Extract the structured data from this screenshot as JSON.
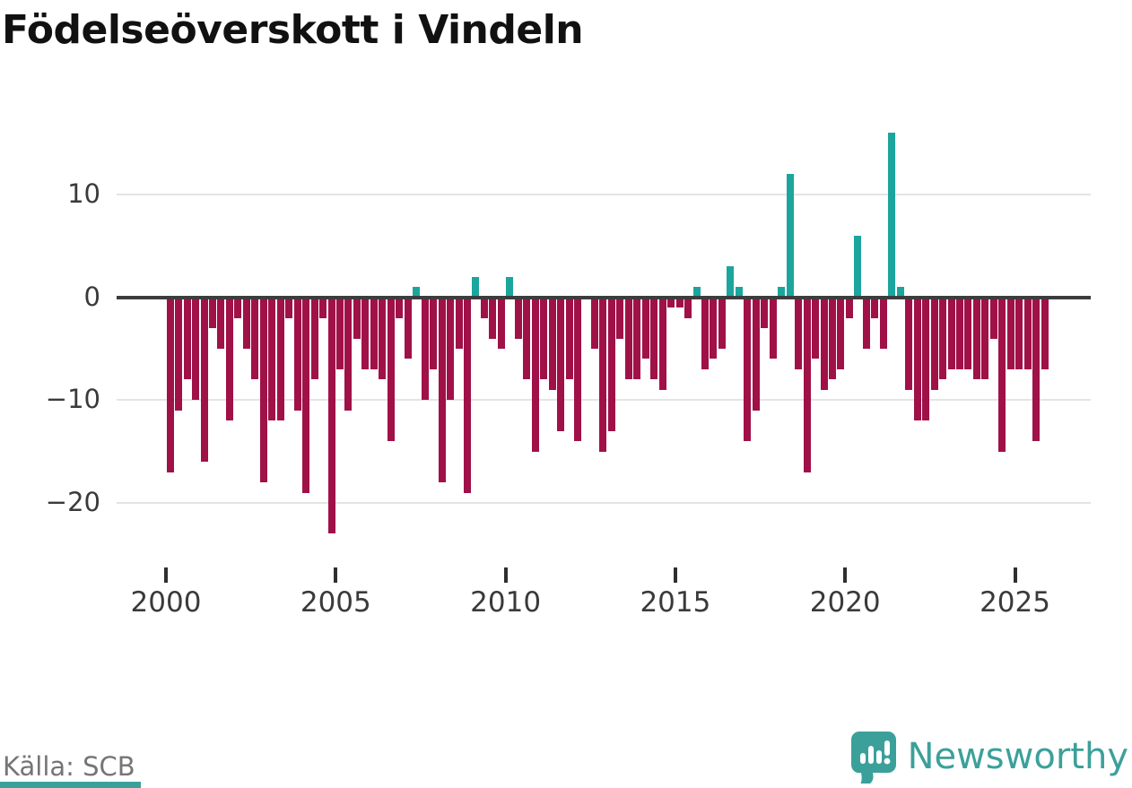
{
  "title": "Födelseöverskott i Vindeln",
  "source": "Källa: SCB",
  "branding": {
    "logo_text": "Newsworthy",
    "logo_color": "#3ca09a",
    "strip_color": "#3ca09a"
  },
  "colors": {
    "negative_bar": "#a01148",
    "positive_bar": "#1ba59d",
    "zero_line": "#3d3d3d",
    "gridline": "#e4e4e4",
    "axis_text": "#3a3a3a",
    "source_text": "#757575",
    "title_text": "#111111"
  },
  "y_axis": {
    "ticks": [
      {
        "label": "10",
        "value": 10
      },
      {
        "label": "0",
        "value": 0
      },
      {
        "label": "−10",
        "value": -10
      },
      {
        "label": "−20",
        "value": -20
      }
    ]
  },
  "x_axis": {
    "ticks": [
      {
        "label": "2000",
        "year": 2000
      },
      {
        "label": "2005",
        "year": 2005
      },
      {
        "label": "2010",
        "year": 2010
      },
      {
        "label": "2015",
        "year": 2015
      },
      {
        "label": "2020",
        "year": 2020
      },
      {
        "label": "2025",
        "year": 2025
      }
    ]
  },
  "chart_data": {
    "type": "bar",
    "title": "Födelseöverskott i Vindeln",
    "xlabel": "",
    "ylabel": "",
    "period": "quarterly",
    "start": "2000Q1",
    "end": "2025Q4",
    "ylim": [
      -24,
      17
    ],
    "grid": true,
    "values_by_year": {
      "2000": [
        -17,
        -11,
        -8,
        -10
      ],
      "2001": [
        -16,
        -3,
        -5,
        -12
      ],
      "2002": [
        -2,
        -5,
        -8,
        -18
      ],
      "2003": [
        -12,
        -12,
        -2,
        -11
      ],
      "2004": [
        -19,
        -8,
        -2,
        -23
      ],
      "2005": [
        -7,
        -11,
        -4,
        -7
      ],
      "2006": [
        -7,
        -8,
        -14,
        -2
      ],
      "2007": [
        -6,
        1,
        -10,
        -7
      ],
      "2008": [
        -18,
        -10,
        -5,
        -19
      ],
      "2009": [
        2,
        -2,
        -4,
        -5
      ],
      "2010": [
        2,
        -4,
        -8,
        -15
      ],
      "2011": [
        -8,
        -9,
        -13,
        -8
      ],
      "2012": [
        -14,
        0,
        -5,
        -15
      ],
      "2013": [
        -13,
        -4,
        -8,
        -8
      ],
      "2014": [
        -6,
        -8,
        -9,
        -1
      ],
      "2015": [
        -1,
        -2,
        1,
        -7
      ],
      "2016": [
        -6,
        -5,
        3,
        1
      ],
      "2017": [
        -14,
        -11,
        -3,
        -6
      ],
      "2018": [
        1,
        12,
        -7,
        -17
      ],
      "2019": [
        -6,
        -9,
        -8,
        -7
      ],
      "2020": [
        -2,
        6,
        -5,
        -2
      ],
      "2021": [
        -5,
        16,
        1,
        -9
      ],
      "2022": [
        -12,
        -12,
        -9,
        -8
      ],
      "2023": [
        -7,
        -7,
        -7,
        -8
      ],
      "2024": [
        -8,
        -4,
        -15,
        -7
      ],
      "2025": [
        -7,
        -7,
        -14,
        -7
      ]
    }
  }
}
